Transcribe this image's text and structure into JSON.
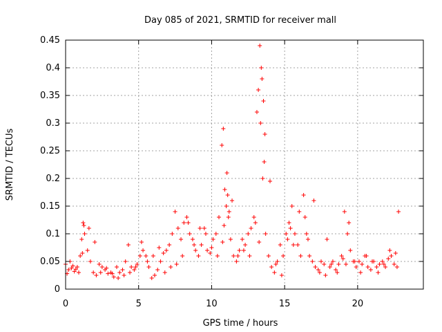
{
  "chart_data": {
    "type": "scatter",
    "title": "Day 085 of 2021, SRMTID for receiver mall",
    "xlabel": "GPS time / hours",
    "ylabel": "SRMTID / TECUs",
    "xlim": [
      0,
      24.5
    ],
    "ylim": [
      0,
      0.45
    ],
    "xticks": [
      0,
      5,
      10,
      15,
      20
    ],
    "xtick_labels": [
      "0",
      "5",
      "10",
      "15",
      "20"
    ],
    "yticks": [
      0,
      0.05,
      0.1,
      0.15,
      0.2,
      0.25,
      0.3,
      0.35,
      0.4,
      0.45
    ],
    "ytick_labels": [
      "0",
      "0.05",
      "0.1",
      "0.15",
      "0.2",
      "0.25",
      "0.3",
      "0.35",
      "0.4",
      "0.45"
    ],
    "grid": true,
    "marker": "plus",
    "color": "#ff0000",
    "series": [
      {
        "name": "SRMTID",
        "x": [
          0.0,
          0.2,
          0.4,
          0.6,
          0.8,
          1.0,
          1.1,
          1.2,
          1.3,
          1.5,
          1.7,
          1.9,
          2.1,
          2.3,
          2.5,
          2.7,
          2.9,
          3.1,
          3.3,
          3.5,
          3.7,
          3.9,
          4.1,
          4.3,
          4.5,
          4.7,
          4.9,
          5.1,
          5.3,
          5.5,
          5.7,
          5.9,
          6.1,
          6.3,
          6.5,
          6.7,
          6.9,
          7.1,
          7.3,
          7.5,
          7.7,
          7.9,
          8.1,
          8.3,
          8.5,
          8.7,
          8.9,
          9.1,
          9.3,
          9.5,
          9.7,
          9.9,
          10.1,
          10.3,
          10.5,
          10.7,
          10.8,
          10.9,
          11.0,
          11.1,
          11.2,
          11.3,
          11.5,
          11.7,
          11.9,
          12.1,
          12.3,
          12.5,
          12.7,
          12.9,
          13.1,
          13.2,
          13.3,
          13.4,
          13.5,
          13.6,
          13.7,
          13.9,
          14.1,
          14.3,
          14.5,
          14.7,
          14.9,
          15.1,
          15.3,
          15.5,
          15.7,
          15.9,
          16.1,
          16.3,
          16.5,
          16.7,
          16.9,
          17.1,
          17.3,
          17.5,
          17.7,
          17.9,
          18.1,
          18.3,
          18.5,
          18.7,
          18.9,
          19.1,
          19.3,
          19.5,
          19.7,
          19.9,
          20.1,
          20.3,
          20.5,
          20.7,
          20.9,
          21.1,
          21.3,
          21.5,
          21.7,
          21.9,
          22.1,
          22.3,
          22.5,
          22.7,
          0.1,
          0.3,
          0.5,
          0.7,
          0.9,
          1.15,
          1.25,
          1.6,
          2.0,
          2.4,
          2.8,
          3.2,
          3.6,
          4.0,
          4.4,
          4.8,
          5.2,
          5.6,
          6.0,
          6.4,
          6.8,
          7.2,
          7.6,
          8.0,
          8.4,
          8.8,
          9.2,
          9.6,
          10.0,
          10.4,
          10.75,
          10.85,
          11.05,
          11.15,
          11.4,
          11.8,
          12.2,
          12.6,
          13.0,
          13.25,
          13.35,
          13.45,
          13.55,
          13.65,
          14.0,
          14.4,
          14.8,
          15.2,
          15.4,
          15.6,
          16.0,
          16.4,
          16.6,
          17.0,
          17.4,
          17.8,
          18.2,
          18.6,
          19.0,
          19.2,
          19.4,
          19.8,
          20.2,
          20.6,
          21.0,
          21.4,
          21.8,
          22.2,
          22.6,
          22.8
        ],
        "y": [
          0.045,
          0.035,
          0.038,
          0.032,
          0.04,
          0.06,
          0.09,
          0.12,
          0.1,
          0.07,
          0.05,
          0.03,
          0.025,
          0.045,
          0.04,
          0.035,
          0.028,
          0.03,
          0.022,
          0.04,
          0.03,
          0.035,
          0.05,
          0.08,
          0.04,
          0.035,
          0.045,
          0.06,
          0.07,
          0.06,
          0.04,
          0.02,
          0.025,
          0.035,
          0.05,
          0.065,
          0.07,
          0.08,
          0.1,
          0.14,
          0.11,
          0.09,
          0.12,
          0.13,
          0.1,
          0.09,
          0.07,
          0.06,
          0.08,
          0.11,
          0.07,
          0.065,
          0.09,
          0.1,
          0.13,
          0.26,
          0.29,
          0.18,
          0.15,
          0.17,
          0.14,
          0.09,
          0.06,
          0.05,
          0.07,
          0.09,
          0.08,
          0.1,
          0.11,
          0.13,
          0.32,
          0.36,
          0.44,
          0.4,
          0.2,
          0.23,
          0.1,
          0.06,
          0.04,
          0.03,
          0.05,
          0.08,
          0.06,
          0.1,
          0.12,
          0.15,
          0.1,
          0.08,
          0.06,
          0.17,
          0.1,
          0.06,
          0.05,
          0.04,
          0.035,
          0.05,
          0.045,
          0.09,
          0.04,
          0.05,
          0.035,
          0.045,
          0.06,
          0.14,
          0.1,
          0.07,
          0.05,
          0.04,
          0.05,
          0.045,
          0.06,
          0.04,
          0.035,
          0.05,
          0.04,
          0.045,
          0.05,
          0.04,
          0.055,
          0.06,
          0.045,
          0.04,
          0.028,
          0.05,
          0.042,
          0.036,
          0.03,
          0.065,
          0.115,
          0.11,
          0.085,
          0.03,
          0.038,
          0.028,
          0.02,
          0.025,
          0.03,
          0.04,
          0.085,
          0.05,
          0.06,
          0.075,
          0.03,
          0.04,
          0.045,
          0.06,
          0.12,
          0.08,
          0.11,
          0.1,
          0.075,
          0.06,
          0.085,
          0.115,
          0.21,
          0.13,
          0.16,
          0.06,
          0.07,
          0.06,
          0.12,
          0.085,
          0.3,
          0.38,
          0.34,
          0.28,
          0.195,
          0.045,
          0.025,
          0.09,
          0.11,
          0.08,
          0.14,
          0.13,
          0.09,
          0.16,
          0.03,
          0.025,
          0.045,
          0.03,
          0.055,
          0.045,
          0.12,
          0.05,
          0.03,
          0.06,
          0.05,
          0.03,
          0.045,
          0.07,
          0.065,
          0.14
        ]
      }
    ]
  }
}
